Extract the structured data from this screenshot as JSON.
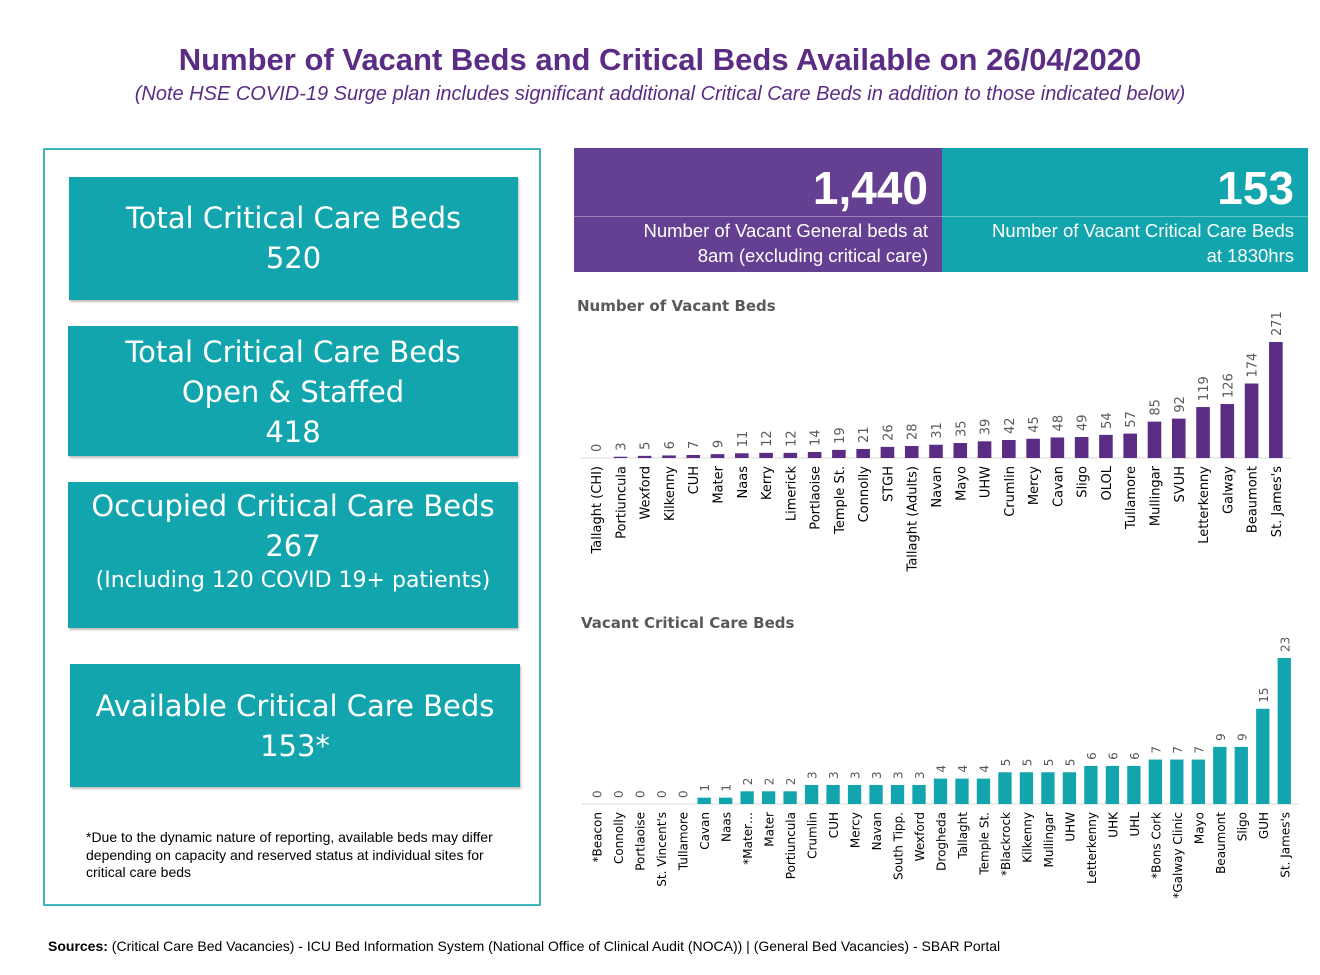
{
  "header": {
    "title": "Number of Vacant Beds and Critical Beds Available on 26/04/2020",
    "subtitle": "(Note HSE COVID-19 Surge plan includes significant additional Critical Care Beds in addition to those indicated below)"
  },
  "cards": {
    "total": {
      "line1": "Total Critical Care Beds",
      "line2": "520"
    },
    "open": {
      "line1": "Total Critical Care Beds",
      "line2": "Open & Staffed",
      "line3": "418"
    },
    "occupied": {
      "line1": "Occupied Critical Care Beds",
      "line2": "267",
      "line3": "(Including 120 COVID 19+ patients)"
    },
    "available": {
      "line1": "Available Critical Care Beds",
      "line2": "153*"
    }
  },
  "note": "*Due to the dynamic nature of reporting, available beds may differ depending on capacity and reserved status at individual sites for critical care beds",
  "kpis": {
    "general": {
      "value": "1,440",
      "line1": "Number of Vacant General beds at",
      "line2": "8am (excluding critical care)"
    },
    "critical": {
      "value": "153",
      "line1": "Number of Vacant Critical Care Beds",
      "line2": "at 1830hrs"
    }
  },
  "colors": {
    "purple": "#5b2c83",
    "teal": "#12a5ad",
    "kpi_purple": "#653f91",
    "kpi_teal": "#12a5ad"
  },
  "sources": {
    "label": "Sources:",
    "text": " (Critical Care Bed Vacancies) - ICU Bed Information System (National Office of Clinical Audit (NOCA))  |  (General Bed Vacancies) - SBAR Portal"
  },
  "chart_data": [
    {
      "type": "bar",
      "title": "Number of Vacant Beds",
      "color": "#5b2c83",
      "categories": [
        "Tallaght (CHI)",
        "Portiuncula",
        "Wexford",
        "Kilkenny",
        "CUH",
        "Mater",
        "Naas",
        "Kerry",
        "Limerick",
        "Portlaoise",
        "Temple St.",
        "Connolly",
        "STGH",
        "Tallaght (Adults)",
        "Navan",
        "Mayo",
        "UHW",
        "Crumlin",
        "Mercy",
        "Cavan",
        "Sligo",
        "OLOL",
        "Tullamore",
        "Mullingar",
        "SVUH",
        "Letterkenny",
        "Galway",
        "Beaumont",
        "St. James's"
      ],
      "values": [
        0,
        3,
        5,
        6,
        7,
        9,
        11,
        12,
        12,
        14,
        19,
        21,
        26,
        28,
        31,
        35,
        39,
        42,
        45,
        48,
        49,
        54,
        57,
        85,
        92,
        119,
        126,
        174,
        271
      ],
      "ylim": [
        0,
        271
      ]
    },
    {
      "type": "bar",
      "title": "Vacant Critical Care Beds",
      "color": "#12a5ad",
      "categories": [
        "*Beacon",
        "Connolly",
        "Portlaoise",
        "St. Vincent's",
        "Tullamore",
        "Cavan",
        "Naas",
        "*Mater…",
        "Mater",
        "Portiuncula",
        "Crumlin",
        "CUH",
        "Mercy",
        "Navan",
        "South Tipp.",
        "Wexford",
        "Drogheda",
        "Tallaght",
        "Temple St.",
        "*Blackrock",
        "Kilkenny",
        "Mullingar",
        "UHW",
        "Letterkenny",
        "UHK",
        "UHL",
        "*Bons Cork",
        "*Galway Clinic",
        "Mayo",
        "Beaumont",
        "Sligo",
        "GUH",
        "St. James's"
      ],
      "values": [
        0,
        0,
        0,
        0,
        0,
        1,
        1,
        2,
        2,
        2,
        3,
        3,
        3,
        3,
        3,
        3,
        4,
        4,
        4,
        5,
        5,
        5,
        5,
        6,
        6,
        6,
        7,
        7,
        7,
        9,
        9,
        15,
        23
      ],
      "ylim": [
        0,
        23
      ]
    }
  ]
}
